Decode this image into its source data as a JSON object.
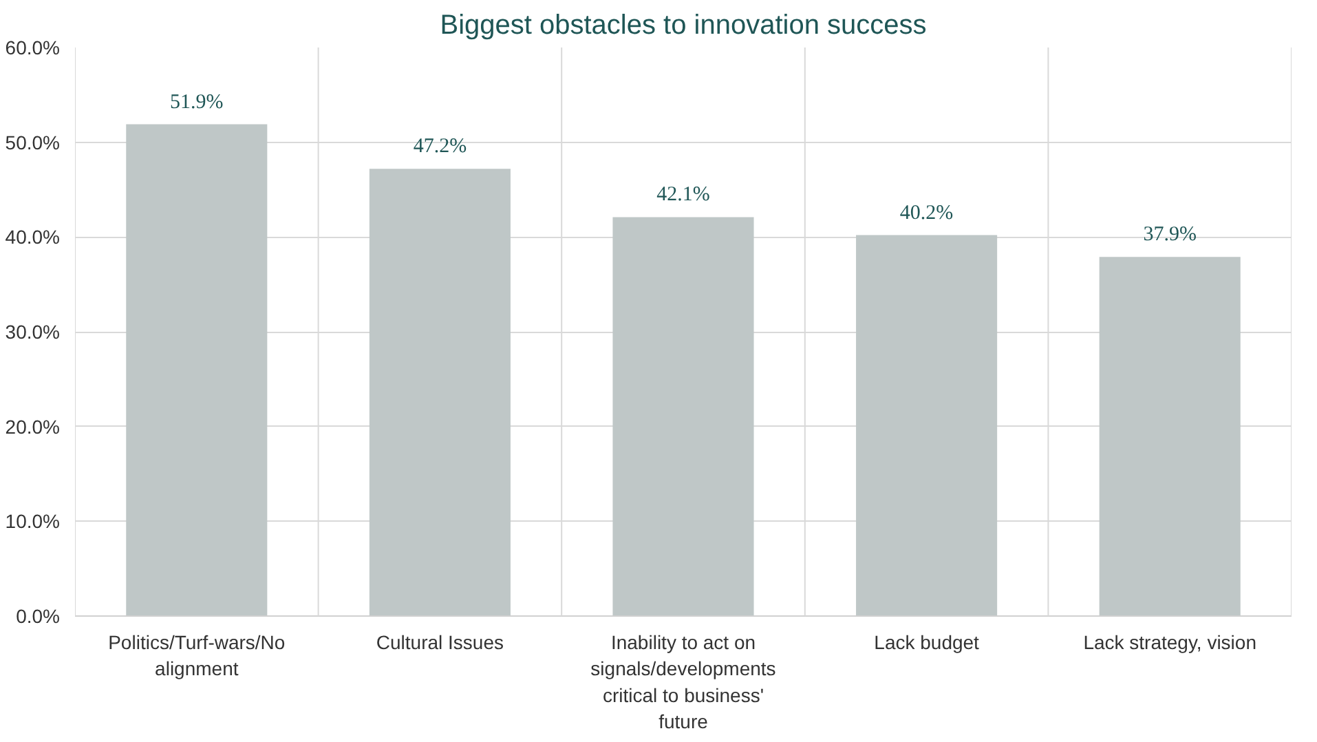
{
  "chart_data": {
    "type": "bar",
    "title": "Biggest obstacles to innovation success",
    "categories": [
      "Politics/Turf-wars/No alignment",
      "Cultural Issues",
      "Inability to act on signals/developments critical to business' future",
      "Lack budget",
      "Lack strategy, vision"
    ],
    "values": [
      51.9,
      47.2,
      42.1,
      40.2,
      37.9
    ],
    "color": "#bfc7c7",
    "value_labels": [
      "51.9%",
      "47.2%",
      "42.1%",
      "40.2%",
      "37.9%"
    ],
    "ylim": [
      0,
      60
    ],
    "yticks": [
      {
        "value": 0,
        "label": "0.0%"
      },
      {
        "value": 10,
        "label": "10.0%"
      },
      {
        "value": 20,
        "label": "20.0%"
      },
      {
        "value": 30,
        "label": "30.0%"
      },
      {
        "value": 40,
        "label": "40.0%"
      },
      {
        "value": 50,
        "label": "50.0%"
      },
      {
        "value": 60,
        "label": "60.0%"
      }
    ],
    "grid": true
  }
}
